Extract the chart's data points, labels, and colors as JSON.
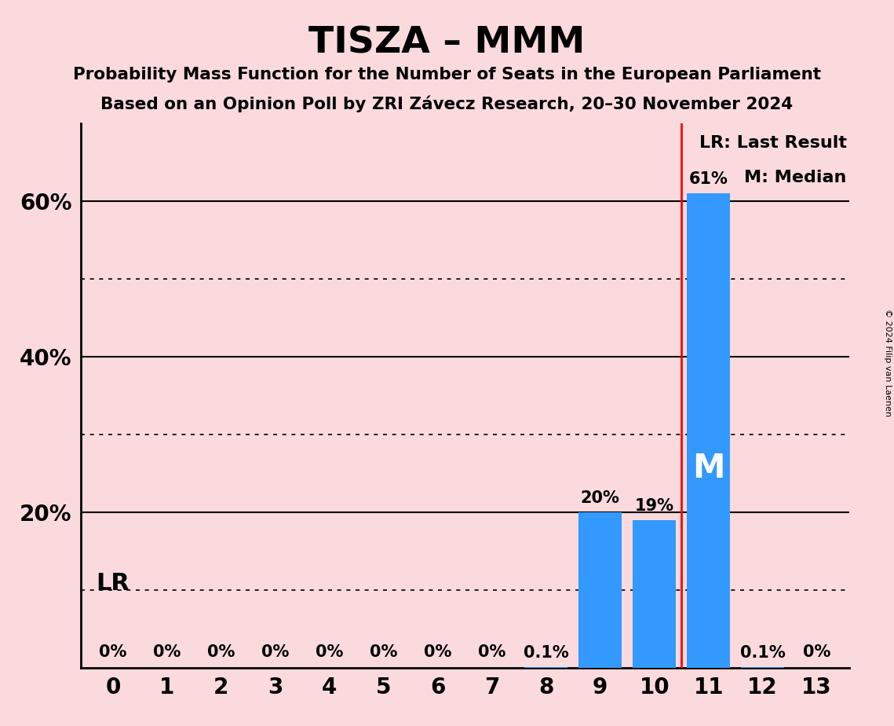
{
  "title": "TISZA – MMM",
  "subtitle1": "Probability Mass Function for the Number of Seats in the European Parliament",
  "subtitle2": "Based on an Opinion Poll by ZRI Závecz Research, 20–30 November 2024",
  "copyright": "© 2024 Filip van Laenen",
  "categories": [
    0,
    1,
    2,
    3,
    4,
    5,
    6,
    7,
    8,
    9,
    10,
    11,
    12,
    13
  ],
  "values": [
    0.0,
    0.0,
    0.0,
    0.0,
    0.0,
    0.0,
    0.0,
    0.0,
    0.1,
    20.0,
    19.0,
    61.0,
    0.1,
    0.0
  ],
  "bar_color": "#3399FF",
  "background_color": "#FADADD",
  "bar_labels": [
    "0%",
    "0%",
    "0%",
    "0%",
    "0%",
    "0%",
    "0%",
    "0%",
    "0.1%",
    "20%",
    "19%",
    "61%",
    "0.1%",
    "0%"
  ],
  "last_result_x": 10.5,
  "median_x": 11,
  "yticks": [
    20,
    40,
    60
  ],
  "ytick_labels": [
    "20%",
    "40%",
    "60%"
  ],
  "dotted_lines": [
    10,
    30,
    50
  ],
  "solid_lines": [
    20,
    40,
    60
  ],
  "lr_label": "LR",
  "median_label": "M",
  "legend_lr": "LR: Last Result",
  "legend_m": "M: Median",
  "ylim": [
    0,
    70
  ],
  "xlim_left": -0.6,
  "xlim_right": 13.6
}
